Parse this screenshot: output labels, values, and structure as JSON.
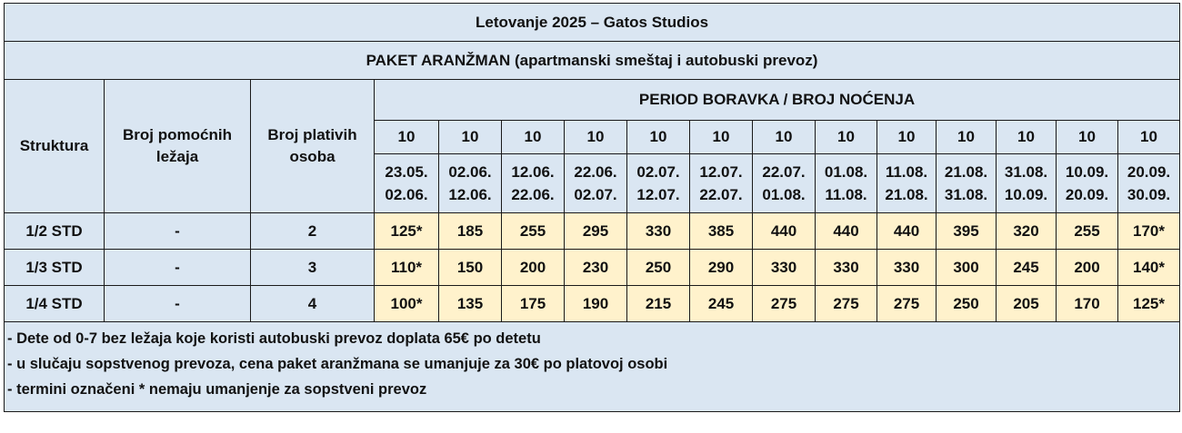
{
  "title": "Letovanje 2025 – Gatos Studios",
  "subtitle": "PAKET ARANŽMAN (apartmanski smeštaj i autobuski prevoz)",
  "headers": {
    "struktura": "Struktura",
    "pomocni_line1": "Broj pomoćnih",
    "pomocni_line2": "ležaja",
    "plativih_line1": "Broj plativih",
    "plativih_line2": "osoba",
    "period": "PERIOD BORAVKA / BROJ NOĆENJA"
  },
  "periods": [
    {
      "nights": "10",
      "from": "23.05.",
      "to": "02.06."
    },
    {
      "nights": "10",
      "from": "02.06.",
      "to": "12.06."
    },
    {
      "nights": "10",
      "from": "12.06.",
      "to": "22.06."
    },
    {
      "nights": "10",
      "from": "22.06.",
      "to": "02.07."
    },
    {
      "nights": "10",
      "from": "02.07.",
      "to": "12.07."
    },
    {
      "nights": "10",
      "from": "12.07.",
      "to": "22.07."
    },
    {
      "nights": "10",
      "from": "22.07.",
      "to": "01.08."
    },
    {
      "nights": "10",
      "from": "01.08.",
      "to": "11.08."
    },
    {
      "nights": "10",
      "from": "11.08.",
      "to": "21.08."
    },
    {
      "nights": "10",
      "from": "21.08.",
      "to": "31.08."
    },
    {
      "nights": "10",
      "from": "31.08.",
      "to": "10.09."
    },
    {
      "nights": "10",
      "from": "10.09.",
      "to": "20.09."
    },
    {
      "nights": "10",
      "from": "20.09.",
      "to": "30.09."
    }
  ],
  "rows": [
    {
      "struktura": "1/2 STD",
      "pomocni": "-",
      "plativih": "2",
      "prices": [
        "125*",
        "185",
        "255",
        "295",
        "330",
        "385",
        "440",
        "440",
        "440",
        "395",
        "320",
        "255",
        "170*"
      ]
    },
    {
      "struktura": "1/3 STD",
      "pomocni": "-",
      "plativih": "3",
      "prices": [
        "110*",
        "150",
        "200",
        "230",
        "250",
        "290",
        "330",
        "330",
        "330",
        "300",
        "245",
        "200",
        "140*"
      ]
    },
    {
      "struktura": "1/4 STD",
      "pomocni": "-",
      "plativih": "4",
      "prices": [
        "100*",
        "135",
        "175",
        "190",
        "215",
        "245",
        "275",
        "275",
        "275",
        "250",
        "205",
        "170",
        "125*"
      ]
    }
  ],
  "notes": [
    "- Dete od 0-7 bez ležaja koje koristi autobuski prevoz doplata 65€ po detetu",
    "- u slučaju sopstvenog prevoza, cena paket aranžmana se umanjuje za 30€ po platovoj osobi",
    "- termini označeni * nemaju umanjenje za sopstveni prevoz"
  ],
  "colors": {
    "header_bg": "#dae6f2",
    "price_bg": "#fff2cc",
    "border": "#1a1a1a"
  }
}
